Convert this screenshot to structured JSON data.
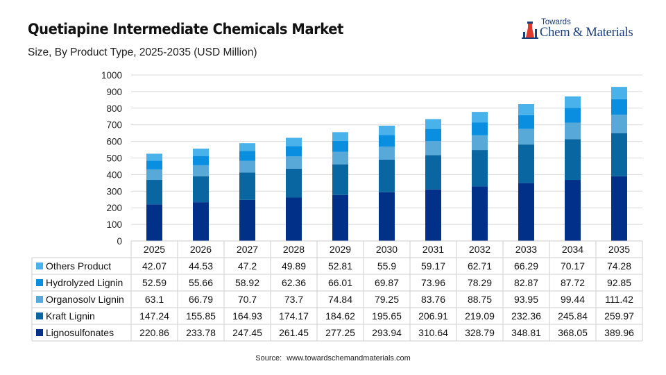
{
  "header": {
    "title": "Quetiapine Intermediate Chemicals Market",
    "subtitle": "Size, By Product Type, 2025-2035 (USD Million)"
  },
  "logo": {
    "top": "Towards",
    "main": "Chem & Materials"
  },
  "footer": {
    "source_label": "Source:",
    "source_url": "www.towardschemandmaterials.com"
  },
  "chart_data": {
    "type": "bar",
    "stacked": true,
    "categories": [
      "2025",
      "2026",
      "2027",
      "2028",
      "2029",
      "2030",
      "2031",
      "2032",
      "2033",
      "2034",
      "2035"
    ],
    "ylim": [
      0,
      1000
    ],
    "yticks": [
      0,
      100,
      200,
      300,
      400,
      500,
      600,
      700,
      800,
      900,
      1000
    ],
    "grid": true,
    "legend_placement": "table rows below chart",
    "series": [
      {
        "name": "Lignosulfonates",
        "color": "#003087",
        "values": [
          "220.86",
          "233.78",
          "247.45",
          "261.45",
          "277.25",
          "293.94",
          "310.64",
          "328.79",
          "348.81",
          "368.05",
          "389.96"
        ]
      },
      {
        "name": "Kraft Lignin",
        "color": "#0a66a0",
        "values": [
          "147.24",
          "155.85",
          "164.93",
          "174.17",
          "184.62",
          "195.65",
          "206.91",
          "219.09",
          "232.36",
          "245.84",
          "259.97"
        ]
      },
      {
        "name": "Organosolv Lignin",
        "color": "#58a8d8",
        "values": [
          "63.1",
          "66.79",
          "70.7",
          "73.7",
          "74.84",
          "79.25",
          "83.76",
          "88.75",
          "93.95",
          "99.44",
          "111.42"
        ]
      },
      {
        "name": "Hydrolyzed Lignin",
        "color": "#0a8fe0",
        "values": [
          "52.59",
          "55.66",
          "58.92",
          "62.36",
          "66.01",
          "69.87",
          "73.96",
          "78.29",
          "82.87",
          "87.72",
          "92.85"
        ]
      },
      {
        "name": "Others Product",
        "color": "#4ab2ea",
        "values": [
          "42.07",
          "44.53",
          "47.2",
          "49.89",
          "52.81",
          "55.9",
          "59.17",
          "62.71",
          "66.29",
          "70.17",
          "74.28"
        ]
      }
    ],
    "table_row_order": [
      "Others Product",
      "Hydrolyzed Lignin",
      "Organosolv Lignin",
      "Kraft Lignin",
      "Lignosulfonates"
    ]
  }
}
